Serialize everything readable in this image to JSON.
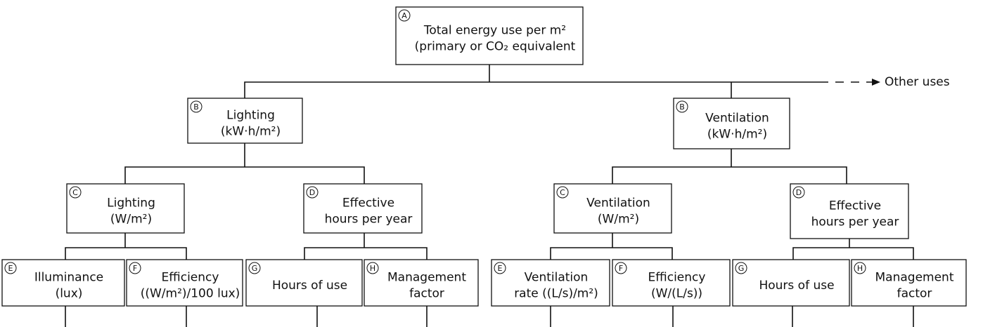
{
  "nodes": [
    {
      "letter": "A",
      "lines": [
        "Total energy use per m²",
        "(primary or CO₂ equivalent"
      ]
    },
    {
      "letter": "B",
      "lines": [
        "Lighting",
        "(kW·h/m²)"
      ]
    },
    {
      "letter": "B",
      "lines": [
        "Ventilation",
        "(kW·h/m²)"
      ]
    },
    {
      "letter": "C",
      "lines": [
        "Lighting",
        "(W/m²)"
      ]
    },
    {
      "letter": "D",
      "lines": [
        "Effective",
        "hours per year"
      ]
    },
    {
      "letter": "C",
      "lines": [
        "Ventilation",
        "(W/m²)"
      ]
    },
    {
      "letter": "D",
      "lines": [
        "Effective",
        "hours per year"
      ]
    },
    {
      "letter": "E",
      "lines": [
        "Illuminance",
        "(lux)"
      ]
    },
    {
      "letter": "F",
      "lines": [
        "Efficiency",
        "((W/m²)/100 lux)"
      ]
    },
    {
      "letter": "G",
      "lines": [
        "Hours of use"
      ]
    },
    {
      "letter": "H",
      "lines": [
        "Management",
        "factor"
      ]
    },
    {
      "letter": "E",
      "lines": [
        "Ventilation",
        "rate ((L/s)/m²)"
      ]
    },
    {
      "letter": "F",
      "lines": [
        "Efficiency",
        "(W/(L/s))"
      ]
    },
    {
      "letter": "G",
      "lines": [
        "Hours of use"
      ]
    },
    {
      "letter": "H",
      "lines": [
        "Management",
        "factor"
      ]
    }
  ],
  "other_uses": "Other uses"
}
